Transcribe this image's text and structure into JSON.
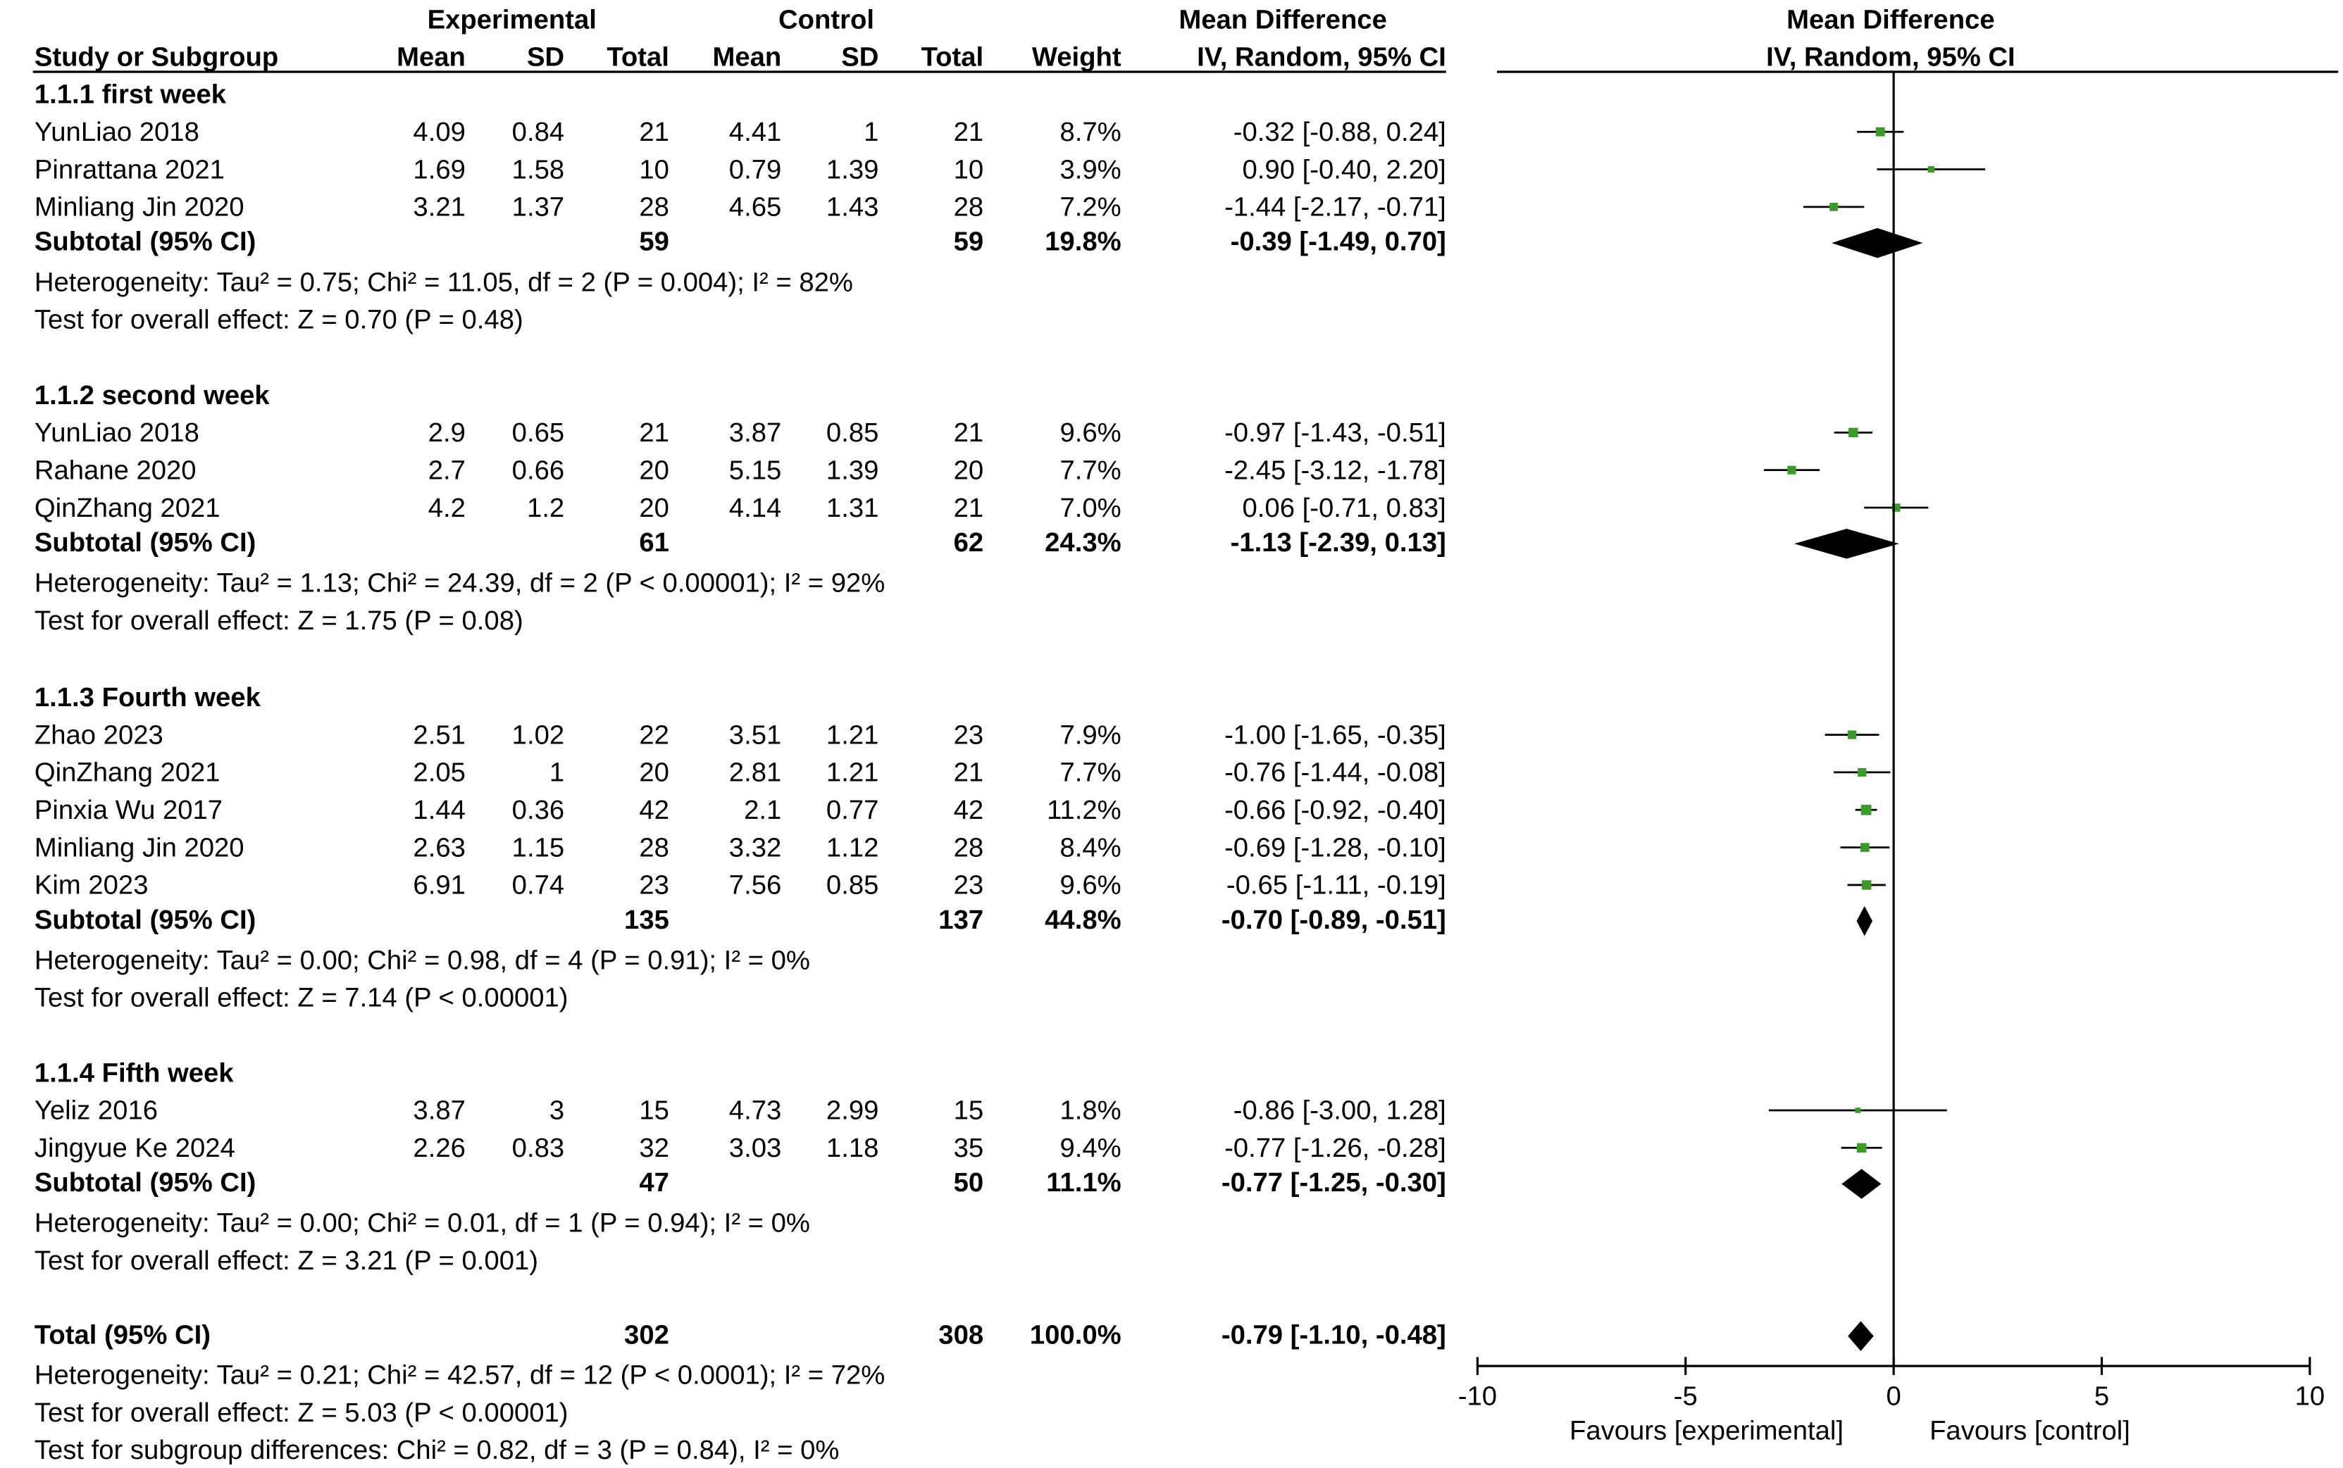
{
  "chart_data": {
    "type": "forest",
    "header": {
      "group_experimental": "Experimental",
      "group_control": "Control",
      "col_study": "Study or Subgroup",
      "col_mean": "Mean",
      "col_sd": "SD",
      "col_total": "Total",
      "col_weight": "Weight",
      "col_md_title": "Mean Difference",
      "col_md_method": "IV, Random, 95% CI",
      "plot_title": "Mean Difference",
      "plot_method": "IV, Random, 95% CI"
    },
    "subgroups": [
      {
        "title": "1.1.1 first week",
        "studies": [
          {
            "name": "YunLiao 2018",
            "e_mean": "4.09",
            "e_sd": "0.84",
            "e_total": "21",
            "c_mean": "4.41",
            "c_sd": "1",
            "c_total": "21",
            "weight": "8.7%",
            "ci_text": "-0.32 [-0.88, 0.24]",
            "md": -0.32,
            "lo": -0.88,
            "hi": 0.24,
            "w": 8.7
          },
          {
            "name": "Pinrattana 2021",
            "e_mean": "1.69",
            "e_sd": "1.58",
            "e_total": "10",
            "c_mean": "0.79",
            "c_sd": "1.39",
            "c_total": "10",
            "weight": "3.9%",
            "ci_text": "0.90 [-0.40, 2.20]",
            "md": 0.9,
            "lo": -0.4,
            "hi": 2.2,
            "w": 3.9
          },
          {
            "name": "Minliang Jin 2020",
            "e_mean": "3.21",
            "e_sd": "1.37",
            "e_total": "28",
            "c_mean": "4.65",
            "c_sd": "1.43",
            "c_total": "28",
            "weight": "7.2%",
            "ci_text": "-1.44 [-2.17, -0.71]",
            "md": -1.44,
            "lo": -2.17,
            "hi": -0.71,
            "w": 7.2
          }
        ],
        "subtotal": {
          "label": "Subtotal (95% CI)",
          "e_total": "59",
          "c_total": "59",
          "weight": "19.8%",
          "ci_text": "-0.39 [-1.49, 0.70]",
          "md": -0.39,
          "lo": -1.49,
          "hi": 0.7
        },
        "heterogeneity": "Heterogeneity: Tau² = 0.75; Chi² = 11.05, df = 2 (P = 0.004); I² = 82%",
        "overall_effect": "Test for overall effect: Z = 0.70 (P = 0.48)"
      },
      {
        "title": "1.1.2 second week",
        "studies": [
          {
            "name": "YunLiao 2018",
            "e_mean": "2.9",
            "e_sd": "0.65",
            "e_total": "21",
            "c_mean": "3.87",
            "c_sd": "0.85",
            "c_total": "21",
            "weight": "9.6%",
            "ci_text": "-0.97 [-1.43, -0.51]",
            "md": -0.97,
            "lo": -1.43,
            "hi": -0.51,
            "w": 9.6
          },
          {
            "name": "Rahane 2020",
            "e_mean": "2.7",
            "e_sd": "0.66",
            "e_total": "20",
            "c_mean": "5.15",
            "c_sd": "1.39",
            "c_total": "20",
            "weight": "7.7%",
            "ci_text": "-2.45 [-3.12, -1.78]",
            "md": -2.45,
            "lo": -3.12,
            "hi": -1.78,
            "w": 7.7
          },
          {
            "name": "QinZhang 2021",
            "e_mean": "4.2",
            "e_sd": "1.2",
            "e_total": "20",
            "c_mean": "4.14",
            "c_sd": "1.31",
            "c_total": "21",
            "weight": "7.0%",
            "ci_text": "0.06 [-0.71, 0.83]",
            "md": 0.06,
            "lo": -0.71,
            "hi": 0.83,
            "w": 7.0
          }
        ],
        "subtotal": {
          "label": "Subtotal (95% CI)",
          "e_total": "61",
          "c_total": "62",
          "weight": "24.3%",
          "ci_text": "-1.13 [-2.39, 0.13]",
          "md": -1.13,
          "lo": -2.39,
          "hi": 0.13
        },
        "heterogeneity": "Heterogeneity: Tau² = 1.13; Chi² = 24.39, df = 2 (P < 0.00001); I² = 92%",
        "overall_effect": "Test for overall effect: Z = 1.75 (P = 0.08)"
      },
      {
        "title": "1.1.3 Fourth week",
        "studies": [
          {
            "name": "Zhao 2023",
            "e_mean": "2.51",
            "e_sd": "1.02",
            "e_total": "22",
            "c_mean": "3.51",
            "c_sd": "1.21",
            "c_total": "23",
            "weight": "7.9%",
            "ci_text": "-1.00 [-1.65, -0.35]",
            "md": -1.0,
            "lo": -1.65,
            "hi": -0.35,
            "w": 7.9
          },
          {
            "name": "QinZhang 2021",
            "e_mean": "2.05",
            "e_sd": "1",
            "e_total": "20",
            "c_mean": "2.81",
            "c_sd": "1.21",
            "c_total": "21",
            "weight": "7.7%",
            "ci_text": "-0.76 [-1.44, -0.08]",
            "md": -0.76,
            "lo": -1.44,
            "hi": -0.08,
            "w": 7.7
          },
          {
            "name": "Pinxia Wu 2017",
            "e_mean": "1.44",
            "e_sd": "0.36",
            "e_total": "42",
            "c_mean": "2.1",
            "c_sd": "0.77",
            "c_total": "42",
            "weight": "11.2%",
            "ci_text": "-0.66 [-0.92, -0.40]",
            "md": -0.66,
            "lo": -0.92,
            "hi": -0.4,
            "w": 11.2
          },
          {
            "name": "Minliang Jin 2020",
            "e_mean": "2.63",
            "e_sd": "1.15",
            "e_total": "28",
            "c_mean": "3.32",
            "c_sd": "1.12",
            "c_total": "28",
            "weight": "8.4%",
            "ci_text": "-0.69 [-1.28, -0.10]",
            "md": -0.69,
            "lo": -1.28,
            "hi": -0.1,
            "w": 8.4
          },
          {
            "name": "Kim 2023",
            "e_mean": "6.91",
            "e_sd": "0.74",
            "e_total": "23",
            "c_mean": "7.56",
            "c_sd": "0.85",
            "c_total": "23",
            "weight": "9.6%",
            "ci_text": "-0.65 [-1.11, -0.19]",
            "md": -0.65,
            "lo": -1.11,
            "hi": -0.19,
            "w": 9.6
          }
        ],
        "subtotal": {
          "label": "Subtotal (95% CI)",
          "e_total": "135",
          "c_total": "137",
          "weight": "44.8%",
          "ci_text": "-0.70 [-0.89, -0.51]",
          "md": -0.7,
          "lo": -0.89,
          "hi": -0.51
        },
        "heterogeneity": "Heterogeneity: Tau² = 0.00; Chi² = 0.98, df = 4 (P = 0.91); I² = 0%",
        "overall_effect": "Test for overall effect: Z = 7.14 (P < 0.00001)"
      },
      {
        "title": "1.1.4 Fifth week",
        "studies": [
          {
            "name": "Yeliz 2016",
            "e_mean": "3.87",
            "e_sd": "3",
            "e_total": "15",
            "c_mean": "4.73",
            "c_sd": "2.99",
            "c_total": "15",
            "weight": "1.8%",
            "ci_text": "-0.86 [-3.00, 1.28]",
            "md": -0.86,
            "lo": -3.0,
            "hi": 1.28,
            "w": 1.8
          },
          {
            "name": "Jingyue Ke 2024",
            "e_mean": "2.26",
            "e_sd": "0.83",
            "e_total": "32",
            "c_mean": "3.03",
            "c_sd": "1.18",
            "c_total": "35",
            "weight": "9.4%",
            "ci_text": "-0.77 [-1.26, -0.28]",
            "md": -0.77,
            "lo": -1.26,
            "hi": -0.28,
            "w": 9.4
          }
        ],
        "subtotal": {
          "label": "Subtotal (95% CI)",
          "e_total": "47",
          "c_total": "50",
          "weight": "11.1%",
          "ci_text": "-0.77 [-1.25, -0.30]",
          "md": -0.77,
          "lo": -1.25,
          "hi": -0.3
        },
        "heterogeneity": "Heterogeneity: Tau² = 0.00; Chi² = 0.01, df = 1 (P = 0.94); I² = 0%",
        "overall_effect": "Test for overall effect: Z = 3.21 (P = 0.001)"
      }
    ],
    "total": {
      "label": "Total (95% CI)",
      "e_total": "302",
      "c_total": "308",
      "weight": "100.0%",
      "ci_text": "-0.79 [-1.10, -0.48]",
      "md": -0.79,
      "lo": -1.1,
      "hi": -0.48
    },
    "footer": [
      "Heterogeneity: Tau² = 0.21; Chi² = 42.57, df = 12 (P < 0.0001); I² = 72%",
      "Test for overall effect: Z = 5.03 (P < 0.00001)",
      "Test for subgroup differences: Chi² = 0.82, df = 3 (P = 0.84), I² = 0%"
    ],
    "axis": {
      "range": [
        -10,
        10
      ],
      "ticks": [
        -10,
        -5,
        0,
        5,
        10
      ],
      "tick_labels": [
        "-10",
        "-5",
        "0",
        "5",
        "10"
      ],
      "favours_left": "Favours [experimental]",
      "favours_right": "Favours [control]"
    },
    "colors": {
      "study_marker": "#3a9a2a",
      "diamond": "#000000",
      "lines": "#000000"
    }
  }
}
